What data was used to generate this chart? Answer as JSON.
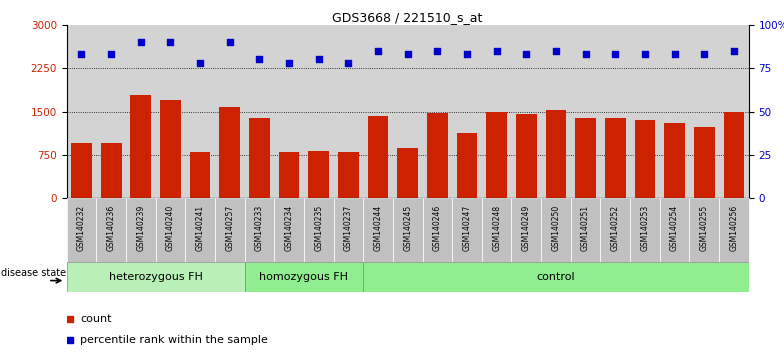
{
  "title": "GDS3668 / 221510_s_at",
  "samples": [
    "GSM140232",
    "GSM140236",
    "GSM140239",
    "GSM140240",
    "GSM140241",
    "GSM140257",
    "GSM140233",
    "GSM140234",
    "GSM140235",
    "GSM140237",
    "GSM140244",
    "GSM140245",
    "GSM140246",
    "GSM140247",
    "GSM140248",
    "GSM140249",
    "GSM140250",
    "GSM140251",
    "GSM140252",
    "GSM140253",
    "GSM140254",
    "GSM140255",
    "GSM140256"
  ],
  "counts": [
    950,
    950,
    1780,
    1700,
    800,
    1580,
    1380,
    800,
    820,
    800,
    1430,
    870,
    1480,
    1130,
    1490,
    1460,
    1520,
    1380,
    1390,
    1360,
    1300,
    1230,
    1490
  ],
  "percentiles": [
    83,
    83,
    90,
    90,
    78,
    90,
    80,
    78,
    80,
    78,
    85,
    83,
    85,
    83,
    85,
    83,
    85,
    83,
    83,
    83,
    83,
    83,
    85
  ],
  "group_labels": [
    "heterozygous FH",
    "homozygous FH",
    "control"
  ],
  "group_starts": [
    0,
    6,
    10
  ],
  "group_ends": [
    5,
    9,
    22
  ],
  "group_colors": [
    "#b8f0b8",
    "#90ee90",
    "#90ee90"
  ],
  "bar_color": "#cc2200",
  "dot_color": "#0000cc",
  "ylim_left": [
    0,
    3000
  ],
  "ylim_right": [
    0,
    100
  ],
  "yticks_left": [
    0,
    750,
    1500,
    2250,
    3000
  ],
  "yticks_right": [
    0,
    25,
    50,
    75,
    100
  ],
  "grid_values": [
    750,
    1500,
    2250
  ],
  "plot_bg_color": "#d3d3d3",
  "tick_bg_color": "#c0c0c0",
  "legend_count_color": "#cc2200",
  "legend_dot_color": "#0000cc"
}
